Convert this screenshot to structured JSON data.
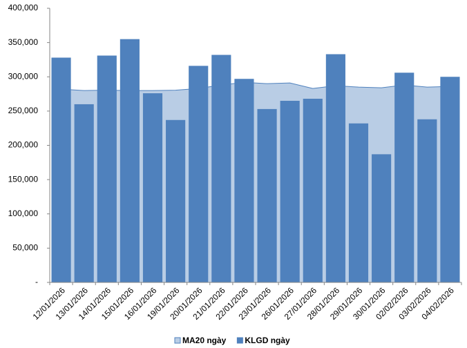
{
  "chart_data": {
    "type": "bar",
    "categories": [
      "12/01/2026",
      "13/01/2026",
      "14/01/2026",
      "15/01/2026",
      "16/01/2026",
      "19/01/2026",
      "20/01/2026",
      "21/01/2026",
      "22/01/2026",
      "23/01/2026",
      "26/01/2026",
      "27/01/2026",
      "28/01/2026",
      "29/01/2026",
      "30/01/2026",
      "02/02/2026",
      "03/02/2026",
      "04/02/2026"
    ],
    "series": [
      {
        "name": "MA20 ngày",
        "type": "area",
        "color": "#b9cde5",
        "line_color": "#4f81bd",
        "values": [
          282000,
          280000,
          280500,
          280000,
          280000,
          280500,
          283000,
          288000,
          292000,
          290000,
          291000,
          283000,
          287000,
          285000,
          284000,
          288000,
          285000,
          286000
        ]
      },
      {
        "name": "KLGD ngày",
        "type": "bar",
        "color": "#4f81bd",
        "values": [
          328000,
          260000,
          331000,
          355000,
          276000,
          237000,
          316000,
          332000,
          297000,
          253000,
          265000,
          268000,
          333000,
          232000,
          187000,
          306000,
          238000,
          300000
        ]
      }
    ],
    "ylim": [
      0,
      400000
    ],
    "yticks": [
      {
        "value": 0,
        "label": "-"
      },
      {
        "value": 50000,
        "label": "50,000"
      },
      {
        "value": 100000,
        "label": "100,000"
      },
      {
        "value": 150000,
        "label": "150,000"
      },
      {
        "value": 200000,
        "label": "200,000"
      },
      {
        "value": 250000,
        "label": "250,000"
      },
      {
        "value": 300000,
        "label": "300,000"
      },
      {
        "value": 350000,
        "label": "350,000"
      },
      {
        "value": 400000,
        "label": "400,000"
      }
    ],
    "grid": false,
    "legend": "bottom"
  }
}
